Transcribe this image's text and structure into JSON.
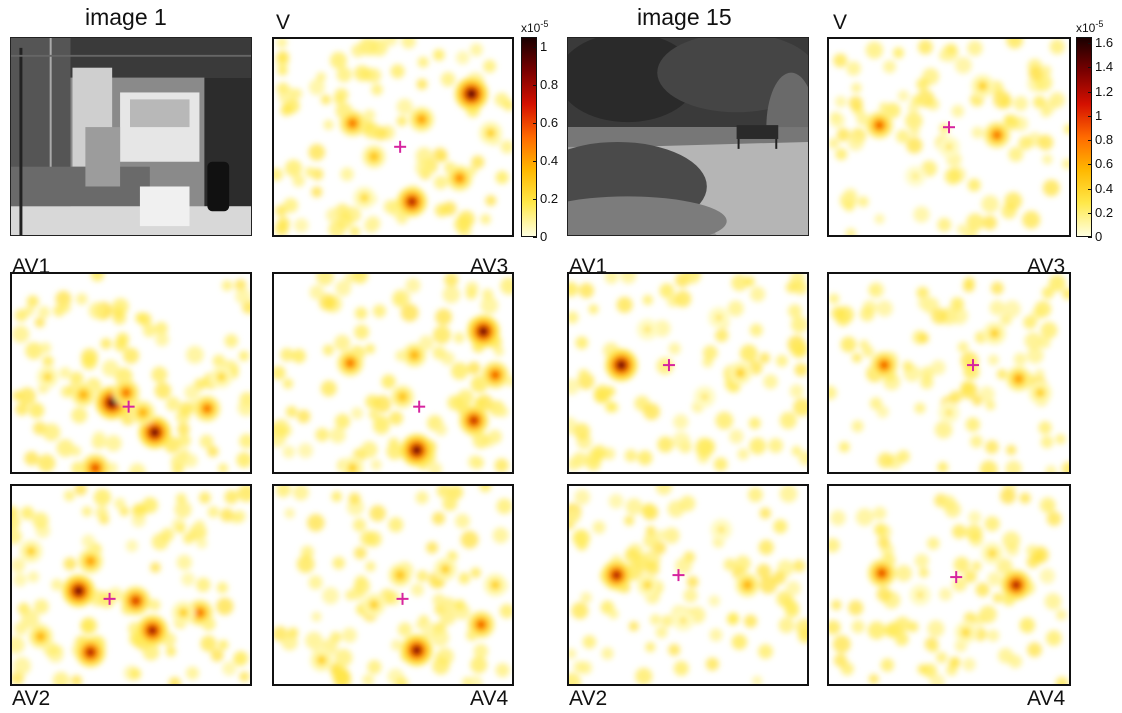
{
  "groups": [
    {
      "id": "image1",
      "title": "image 1",
      "colorbar": {
        "exponent_label": "x10",
        "exponent": "-5",
        "max": 1.05,
        "ticks": [
          "0",
          "0.2",
          "0.4",
          "0.6",
          "0.8",
          "1"
        ],
        "tick_values": [
          0,
          0.2,
          0.4,
          0.6,
          0.8,
          1.0
        ]
      },
      "panels": [
        {
          "id": "V",
          "label": "V",
          "fixation": [
            0.53,
            0.55
          ],
          "peaks": [
            [
              0.83,
              0.28,
              1.0
            ],
            [
              0.58,
              0.83,
              0.8
            ],
            [
              0.33,
              0.43,
              0.55
            ],
            [
              0.62,
              0.41,
              0.45
            ],
            [
              0.78,
              0.71,
              0.5
            ],
            [
              0.42,
              0.6,
              0.35
            ],
            [
              0.91,
              0.48,
              0.3
            ],
            [
              0.38,
              0.81,
              0.25
            ]
          ]
        },
        {
          "id": "AV1",
          "label": "AV1",
          "fixation": [
            0.49,
            0.67
          ],
          "peaks": [
            [
              0.42,
              0.65,
              1.0
            ],
            [
              0.6,
              0.8,
              0.95
            ],
            [
              0.48,
              0.6,
              0.55
            ],
            [
              0.3,
              0.61,
              0.4
            ],
            [
              0.55,
              0.7,
              0.4
            ],
            [
              0.82,
              0.68,
              0.55
            ],
            [
              0.35,
              0.98,
              0.65
            ],
            [
              0.15,
              0.52,
              0.25
            ],
            [
              0.88,
              0.52,
              0.25
            ]
          ]
        },
        {
          "id": "AV3",
          "label": "AV3",
          "fixation": [
            0.61,
            0.67
          ],
          "peaks": [
            [
              0.88,
              0.29,
              0.95
            ],
            [
              0.6,
              0.89,
              0.95
            ],
            [
              0.84,
              0.74,
              0.75
            ],
            [
              0.93,
              0.51,
              0.6
            ],
            [
              0.32,
              0.45,
              0.55
            ],
            [
              0.59,
              0.41,
              0.4
            ],
            [
              0.54,
              0.62,
              0.35
            ],
            [
              0.33,
              0.98,
              0.3
            ]
          ]
        },
        {
          "id": "AV2",
          "label": "AV2",
          "fixation": [
            0.41,
            0.57
          ],
          "peaks": [
            [
              0.28,
              0.53,
              0.95
            ],
            [
              0.59,
              0.73,
              0.85
            ],
            [
              0.52,
              0.58,
              0.7
            ],
            [
              0.79,
              0.64,
              0.55
            ],
            [
              0.33,
              0.84,
              0.8
            ],
            [
              0.33,
              0.38,
              0.45
            ],
            [
              0.12,
              0.76,
              0.4
            ],
            [
              0.08,
              0.33,
              0.3
            ],
            [
              0.72,
              0.64,
              0.3
            ]
          ]
        },
        {
          "id": "AV4",
          "label": "AV4",
          "fixation": [
            0.54,
            0.57
          ],
          "peaks": [
            [
              0.6,
              0.83,
              0.9
            ],
            [
              0.87,
              0.7,
              0.6
            ],
            [
              0.53,
              0.45,
              0.35
            ],
            [
              0.42,
              0.6,
              0.3
            ],
            [
              0.72,
              0.42,
              0.3
            ],
            [
              0.2,
              0.88,
              0.3
            ],
            [
              0.93,
              0.5,
              0.3
            ]
          ]
        }
      ]
    },
    {
      "id": "image15",
      "title": "image 15",
      "colorbar": {
        "exponent_label": "x10",
        "exponent": "-5",
        "max": 1.65,
        "ticks": [
          "0",
          "0.2",
          "0.4",
          "0.6",
          "0.8",
          "1",
          "1.2",
          "1.4",
          "1.6"
        ],
        "tick_values": [
          0,
          0.2,
          0.4,
          0.6,
          0.8,
          1.0,
          1.2,
          1.4,
          1.6
        ]
      },
      "panels": [
        {
          "id": "V",
          "label": "V",
          "fixation": [
            0.5,
            0.45
          ],
          "peaks": [
            [
              0.21,
              0.44,
              0.6
            ],
            [
              0.7,
              0.49,
              0.55
            ],
            [
              0.64,
              0.24,
              0.3
            ],
            [
              0.5,
              0.55,
              0.2
            ],
            [
              0.36,
              0.7,
              0.15
            ]
          ]
        },
        {
          "id": "AV1",
          "label": "AV1",
          "fixation": [
            0.42,
            0.46
          ],
          "peaks": [
            [
              0.22,
              0.46,
              0.95
            ],
            [
              0.72,
              0.5,
              0.3
            ],
            [
              0.33,
              0.28,
              0.2
            ],
            [
              0.57,
              0.62,
              0.2
            ],
            [
              0.63,
              0.22,
              0.2
            ]
          ]
        },
        {
          "id": "AV3",
          "label": "AV3",
          "fixation": [
            0.6,
            0.46
          ],
          "peaks": [
            [
              0.23,
              0.46,
              0.6
            ],
            [
              0.79,
              0.53,
              0.45
            ],
            [
              0.88,
              0.6,
              0.3
            ],
            [
              0.69,
              0.3,
              0.3
            ],
            [
              0.5,
              0.7,
              0.2
            ]
          ]
        },
        {
          "id": "AV2",
          "label": "AV2",
          "fixation": [
            0.46,
            0.45
          ],
          "peaks": [
            [
              0.2,
              0.45,
              0.8
            ],
            [
              0.75,
              0.5,
              0.4
            ],
            [
              0.33,
              0.5,
              0.25
            ],
            [
              0.64,
              0.22,
              0.2
            ],
            [
              0.48,
              0.68,
              0.2
            ]
          ]
        },
        {
          "id": "AV4",
          "label": "AV4",
          "fixation": [
            0.53,
            0.46
          ],
          "peaks": [
            [
              0.78,
              0.5,
              0.8
            ],
            [
              0.22,
              0.44,
              0.65
            ],
            [
              0.68,
              0.34,
              0.25
            ],
            [
              0.57,
              0.74,
              0.25
            ],
            [
              0.38,
              0.55,
              0.2
            ]
          ]
        }
      ]
    }
  ],
  "chart_data": {
    "type": "heatmap",
    "description_of_values": "fixation density maps; colorbar units x10^-5",
    "groups": [
      {
        "title": "image 1",
        "panels": [
          "V",
          "AV1",
          "AV3",
          "AV2",
          "AV4"
        ],
        "colorbar_range": [
          0,
          1.05
        ],
        "colorbar_ticks": [
          0,
          0.2,
          0.4,
          0.6,
          0.8,
          1
        ]
      },
      {
        "title": "image 15",
        "panels": [
          "V",
          "AV1",
          "AV3",
          "AV2",
          "AV4"
        ],
        "colorbar_range": [
          0,
          1.65
        ],
        "colorbar_ticks": [
          0,
          0.2,
          0.4,
          0.6,
          0.8,
          1,
          1.2,
          1.4,
          1.6
        ]
      }
    ],
    "colormap": [
      "#ffffe0",
      "#ffe84a",
      "#ffb800",
      "#ff6a00",
      "#d41000",
      "#7a0000",
      "#1a0000"
    ]
  },
  "colors": {
    "fixation_marker": "#d6249f",
    "cmap": [
      "#ffffe0",
      "#ffe84a",
      "#ffb800",
      "#ff6a00",
      "#d41000",
      "#7a0000",
      "#1a0000"
    ]
  }
}
